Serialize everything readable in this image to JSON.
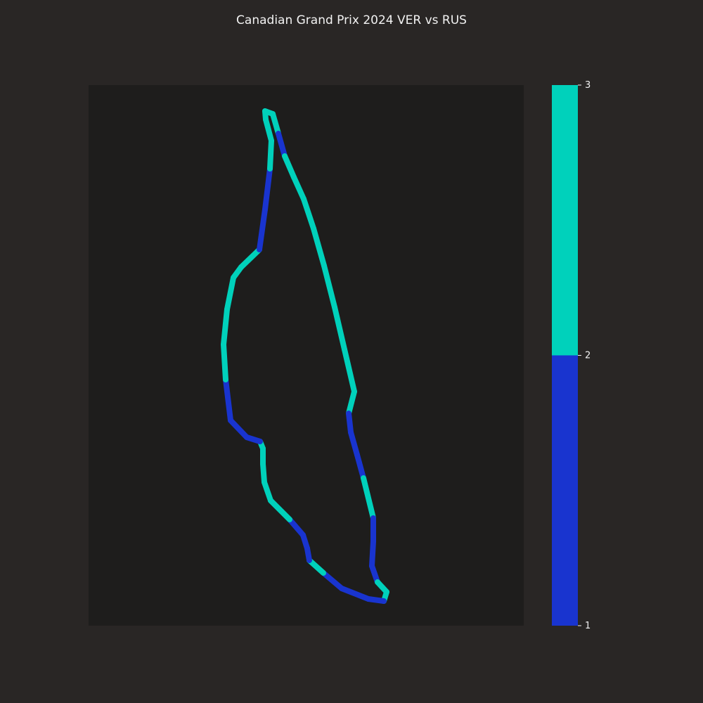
{
  "chart_data": {
    "type": "line",
    "title": "Canadian Grand Prix 2024 VER vs RUS",
    "colorbar": {
      "ticks": [
        1,
        2,
        3
      ],
      "range": [
        1,
        3
      ],
      "segments": [
        {
          "from": 1,
          "to": 2,
          "color": "#1934cf"
        },
        {
          "from": 2,
          "to": 3,
          "color": "#00d1bb"
        }
      ]
    },
    "track": {
      "x": [
        388,
        396,
        405,
        418,
        432,
        446,
        461,
        476,
        490,
        504,
        496,
        499,
        508,
        517,
        531,
        531,
        529,
        537,
        550,
        546,
        524,
        486,
        460,
        440,
        437,
        431,
        412,
        385,
        376,
        374,
        374,
        370,
        351,
        328,
        321,
        318,
        323,
        332,
        343,
        369,
        377,
        384,
        386,
        378,
        377,
        388
      ],
      "y": [
        162,
        190,
        222,
        252,
        283,
        325,
        378,
        437,
        497,
        557,
        588,
        615,
        647,
        680,
        737,
        770,
        805,
        828,
        842,
        855,
        852,
        837,
        815,
        797,
        780,
        761,
        739,
        712,
        686,
        660,
        638,
        628,
        622,
        598,
        540,
        490,
        440,
        395,
        380,
        355,
        298,
        240,
        200,
        170,
        158,
        162
      ],
      "fastest_driver": [
        3,
        2,
        3,
        3,
        3,
        3,
        3,
        3,
        3,
        3,
        2,
        2,
        2,
        3,
        2,
        2,
        2,
        3,
        3,
        2,
        2,
        2,
        3,
        2,
        2,
        2,
        3,
        3,
        3,
        3,
        3,
        2,
        2,
        2,
        3,
        3,
        3,
        3,
        3,
        2,
        2,
        3,
        3,
        3,
        3,
        3
      ]
    },
    "legend": "right",
    "grid": false
  }
}
